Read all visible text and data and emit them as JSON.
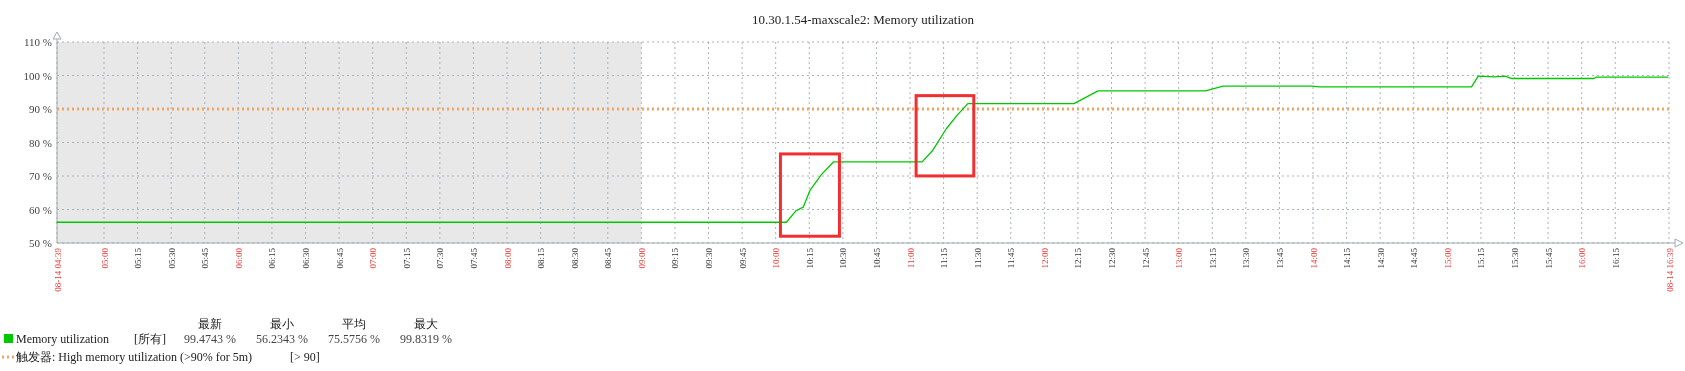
{
  "chart_data": {
    "type": "line",
    "title": "10.30.1.54-maxscale2: Memory utilization",
    "xlim": [
      4.65,
      16.65
    ],
    "xticks": [
      {
        "value": 4.65,
        "label": "08-14 04:39"
      },
      {
        "value": 5,
        "label": "05:00"
      },
      {
        "value": 5.25,
        "label": "05:15"
      },
      {
        "value": 5.5,
        "label": "05:30"
      },
      {
        "value": 5.75,
        "label": "05:45"
      },
      {
        "value": 6,
        "label": "06:00"
      },
      {
        "value": 6.25,
        "label": "06:15"
      },
      {
        "value": 6.5,
        "label": "06:30"
      },
      {
        "value": 6.75,
        "label": "06:45"
      },
      {
        "value": 7,
        "label": "07:00"
      },
      {
        "value": 7.25,
        "label": "07:15"
      },
      {
        "value": 7.5,
        "label": "07:30"
      },
      {
        "value": 7.75,
        "label": "07:45"
      },
      {
        "value": 8,
        "label": "08:00"
      },
      {
        "value": 8.25,
        "label": "08:15"
      },
      {
        "value": 8.5,
        "label": "08:30"
      },
      {
        "value": 8.75,
        "label": "08:45"
      },
      {
        "value": 9,
        "label": "09:00"
      },
      {
        "value": 9.25,
        "label": "09:15"
      },
      {
        "value": 9.5,
        "label": "09:30"
      },
      {
        "value": 9.75,
        "label": "09:45"
      },
      {
        "value": 10,
        "label": "10:00"
      },
      {
        "value": 10.25,
        "label": "10:15"
      },
      {
        "value": 10.5,
        "label": "10:30"
      },
      {
        "value": 10.75,
        "label": "10:45"
      },
      {
        "value": 11,
        "label": "11:00"
      },
      {
        "value": 11.25,
        "label": "11:15"
      },
      {
        "value": 11.5,
        "label": "11:30"
      },
      {
        "value": 11.75,
        "label": "11:45"
      },
      {
        "value": 12,
        "label": "12:00"
      },
      {
        "value": 12.25,
        "label": "12:15"
      },
      {
        "value": 12.5,
        "label": "12:30"
      },
      {
        "value": 12.75,
        "label": "12:45"
      },
      {
        "value": 13,
        "label": "13:00"
      },
      {
        "value": 13.25,
        "label": "13:15"
      },
      {
        "value": 13.5,
        "label": "13:30"
      },
      {
        "value": 13.75,
        "label": "13:45"
      },
      {
        "value": 14,
        "label": "14:00"
      },
      {
        "value": 14.25,
        "label": "14:15"
      },
      {
        "value": 14.5,
        "label": "14:30"
      },
      {
        "value": 14.75,
        "label": "14:45"
      },
      {
        "value": 15,
        "label": "15:00"
      },
      {
        "value": 15.25,
        "label": "15:15"
      },
      {
        "value": 15.5,
        "label": "15:30"
      },
      {
        "value": 15.75,
        "label": "15:45"
      },
      {
        "value": 16,
        "label": "16:00"
      },
      {
        "value": 16.25,
        "label": "16:15"
      },
      {
        "value": 16.65,
        "label": "08-14 16:39"
      }
    ],
    "ylim": [
      50,
      110
    ],
    "yticks": [
      {
        "value": 50,
        "label": "50 %"
      },
      {
        "value": 60,
        "label": "60 %"
      },
      {
        "value": 70,
        "label": "70 %"
      },
      {
        "value": 80,
        "label": "80 %"
      },
      {
        "value": 90,
        "label": "90 %"
      },
      {
        "value": 100,
        "label": "100 %"
      },
      {
        "value": 110,
        "label": "110 %"
      }
    ],
    "grid": true,
    "legend": "bottom",
    "marker": "none",
    "line_style": "solid",
    "series": [
      {
        "name": "Memory utilization",
        "color": "#00c800",
        "x": [
          4.65,
          10.08,
          10.15,
          10.205,
          10.255,
          10.34,
          10.43,
          11.09,
          11.17,
          11.27,
          11.35,
          11.43,
          12.22,
          12.4,
          13.2,
          13.33,
          13.99,
          14.05,
          15.18,
          15.23,
          15.35,
          15.43,
          15.48,
          16.09,
          16.11,
          16.64
        ],
        "values": [
          56.2,
          56.2,
          59.6,
          60.7,
          65.7,
          70.4,
          74.2,
          74.2,
          77.7,
          84.1,
          88.1,
          91.6,
          91.6,
          95.4,
          95.4,
          96.8,
          96.8,
          96.6,
          96.6,
          99.8,
          99.6,
          99.8,
          99.1,
          99.1,
          99.5,
          99.5
        ]
      }
    ],
    "ref_lines": [
      {
        "axis": "y",
        "value": 90,
        "label": "触发器: High memory utilization (>90% for 5m)",
        "color": "#f4a460",
        "line_style": "dotted"
      }
    ],
    "bands": [
      {
        "axis": "x",
        "from": 4.65,
        "to": 9,
        "color": "#e8e8e8"
      }
    ],
    "annotations": [
      "最新",
      "最小",
      "平均",
      "最大",
      "[所有]",
      "99.4743 %",
      "56.2343 %",
      "75.5756 %",
      "99.8319 %",
      "[> 90]"
    ]
  }
}
